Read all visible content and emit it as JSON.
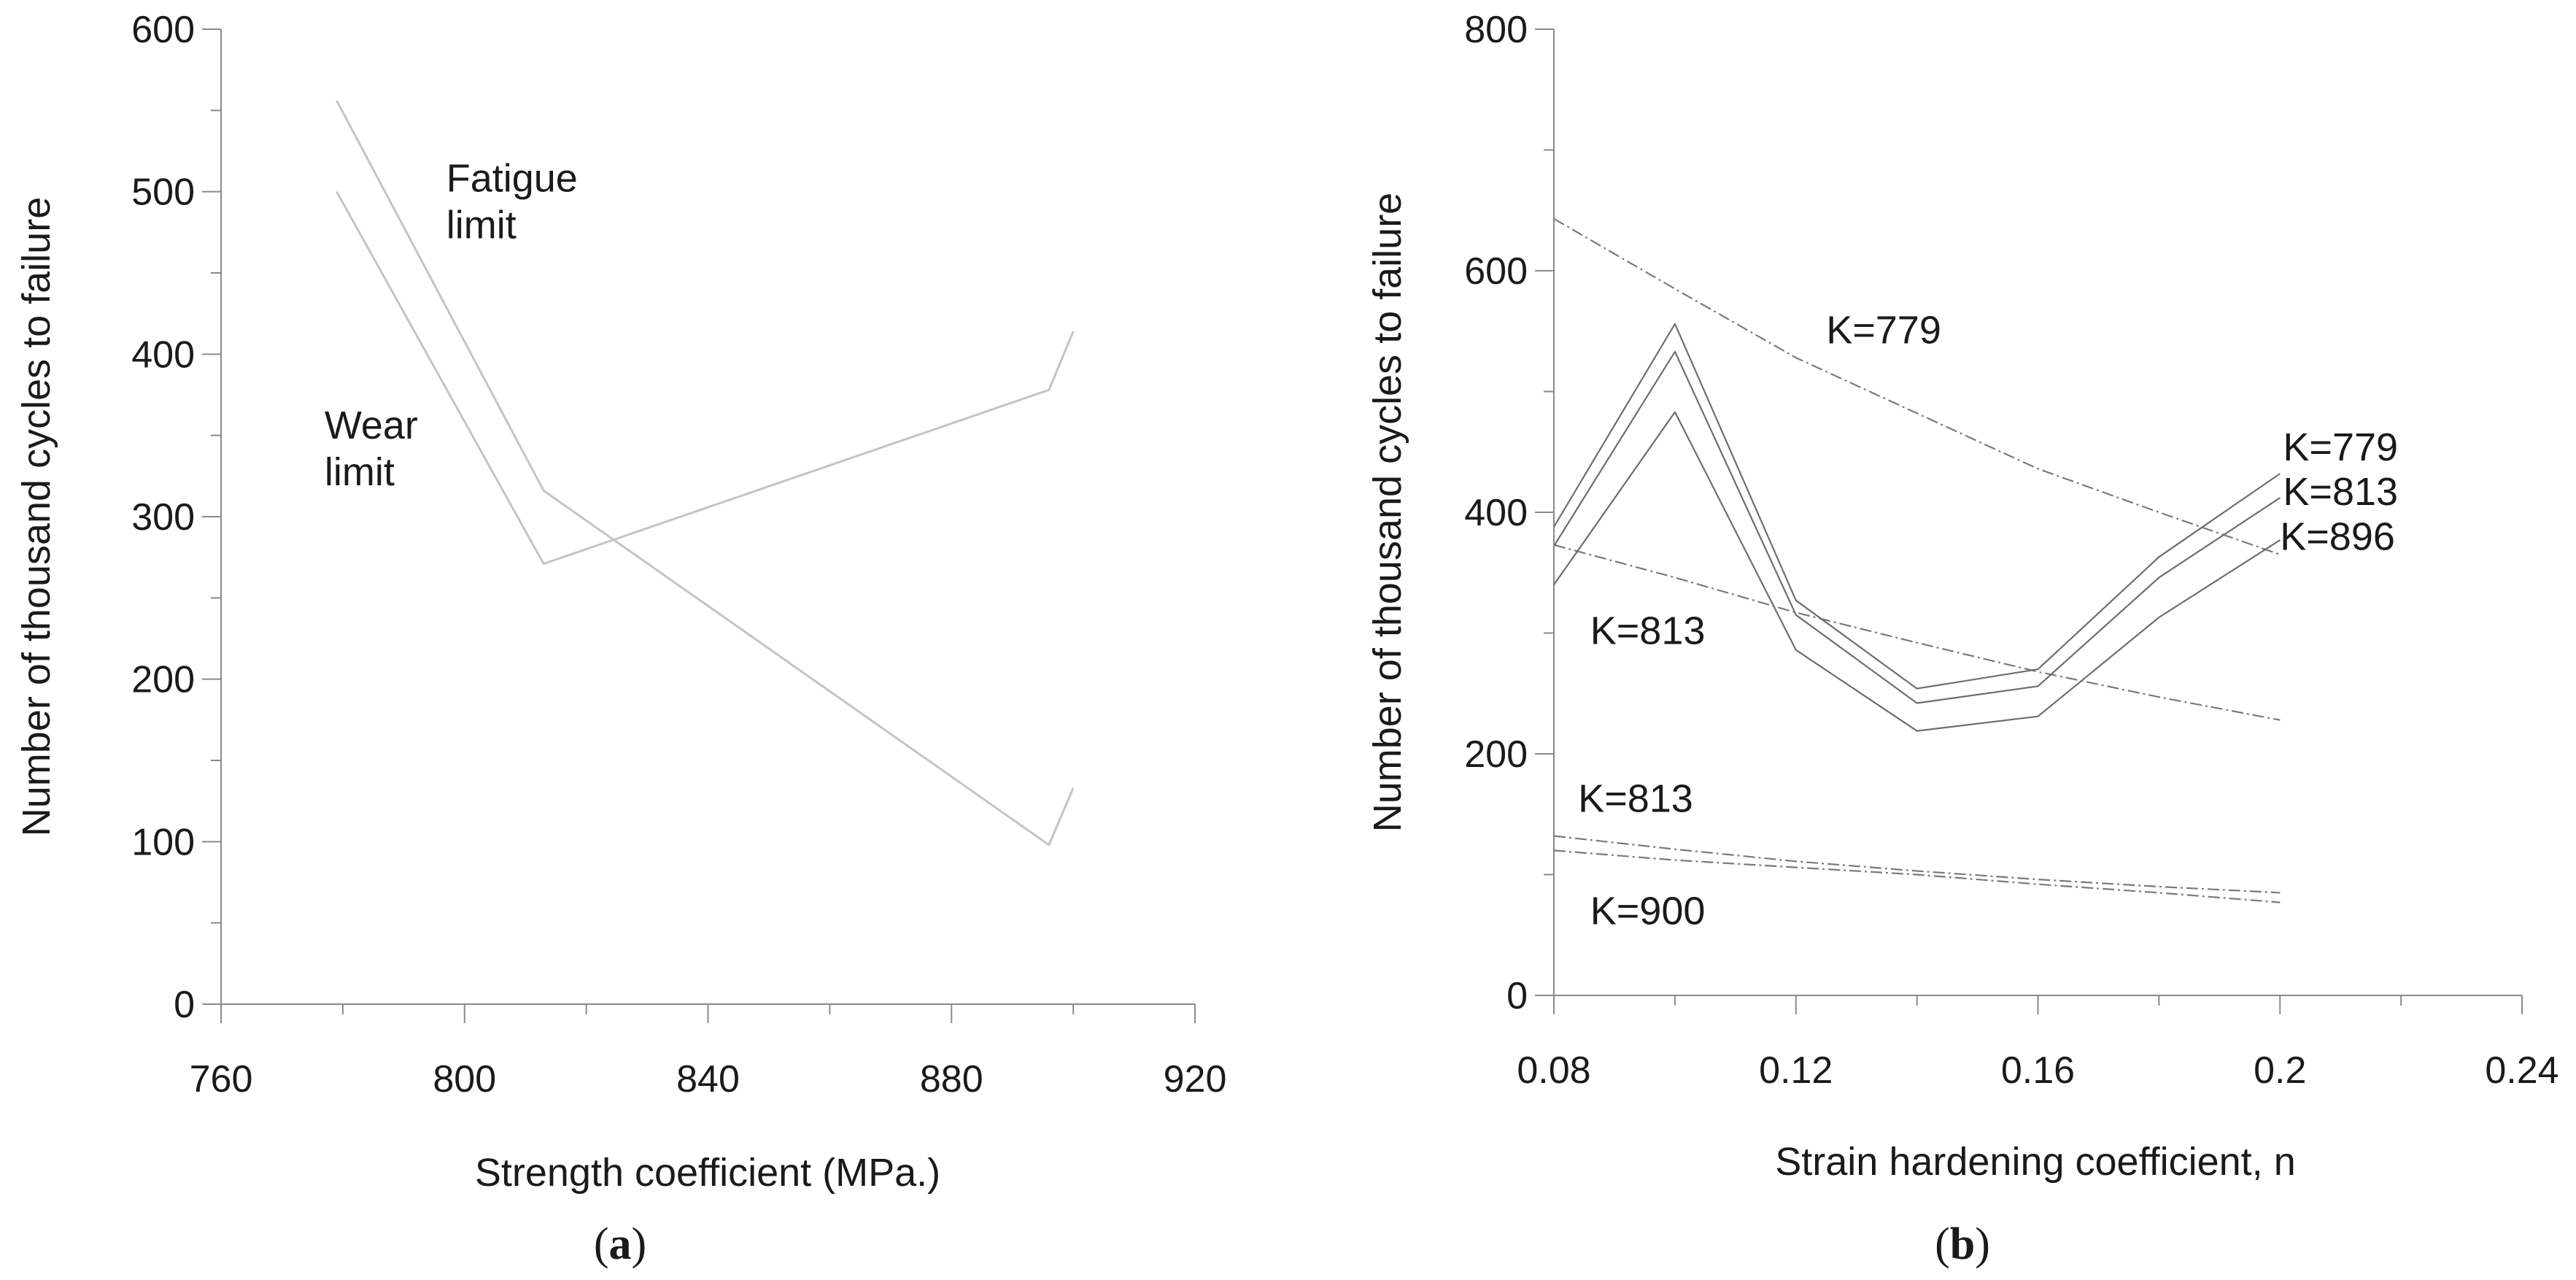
{
  "chart_data": [
    {
      "panel": "a",
      "panel_label_text": {
        "open": "(",
        "letter": "a",
        "close": ")"
      },
      "type": "line",
      "xlabel": "Strength coefficient (MPa.)",
      "ylabel": "Number of thousand cycles to failure",
      "xlim": [
        760,
        920
      ],
      "ylim": [
        0,
        600
      ],
      "x_ticks": [
        "760",
        "800",
        "840",
        "880",
        "920"
      ],
      "y_ticks": [
        "0",
        "100",
        "200",
        "300",
        "400",
        "500",
        "600"
      ],
      "series": [
        {
          "name": "Fatigue limit",
          "x": [
            779,
            813,
            896,
            900
          ],
          "y": [
            556,
            316,
            98,
            133
          ]
        },
        {
          "name": "Wear limit",
          "x": [
            779,
            813,
            896,
            900
          ],
          "y": [
            500,
            271,
            378,
            414
          ]
        }
      ],
      "annotations": [
        {
          "lines": [
            "Fatigue",
            "limit"
          ],
          "x": 797,
          "y": 500
        },
        {
          "lines": [
            "Wear",
            "limit"
          ],
          "x": 777,
          "y": 348
        }
      ]
    },
    {
      "panel": "b",
      "panel_label_text": {
        "open": "(",
        "letter": "b",
        "close": ")"
      },
      "type": "line",
      "xlabel": "Strain hardening coefficient, n",
      "ylabel": "Number of thousand cycles to failure",
      "xlim": [
        0.08,
        0.24
      ],
      "ylim": [
        0,
        800
      ],
      "x_ticks": [
        "0.08",
        "0.12",
        "0.16",
        "0.2",
        "0.24"
      ],
      "y_ticks": [
        "0",
        "200",
        "400",
        "600",
        "800"
      ],
      "series": [
        {
          "name": "Fatigue K=779",
          "style": "dashed",
          "x": [
            0.08,
            0.1,
            0.12,
            0.14,
            0.16,
            0.18,
            0.2
          ],
          "y": [
            643,
            585,
            528,
            482,
            436,
            400,
            365
          ]
        },
        {
          "name": "Fatigue K=813",
          "style": "dashed",
          "x": [
            0.08,
            0.1,
            0.12,
            0.14,
            0.16,
            0.18,
            0.2
          ],
          "y": [
            373,
            346,
            317,
            292,
            268,
            247,
            228
          ]
        },
        {
          "name": "Fatigue K=813 (low)",
          "style": "dashed",
          "x": [
            0.08,
            0.1,
            0.12,
            0.14,
            0.16,
            0.18,
            0.2
          ],
          "y": [
            132,
            121,
            111,
            103,
            96,
            90,
            85
          ]
        },
        {
          "name": "Fatigue K=900",
          "style": "dashed",
          "x": [
            0.08,
            0.1,
            0.12,
            0.14,
            0.16,
            0.18,
            0.2
          ],
          "y": [
            120,
            112,
            106,
            100,
            92,
            85,
            77
          ]
        },
        {
          "name": "Wear K=779",
          "style": "solid",
          "x": [
            0.08,
            0.1,
            0.12,
            0.14,
            0.16,
            0.18,
            0.2
          ],
          "y": [
            388,
            556,
            327,
            254,
            270,
            363,
            432
          ]
        },
        {
          "name": "Wear K=813",
          "style": "solid",
          "x": [
            0.08,
            0.1,
            0.12,
            0.14,
            0.16,
            0.18,
            0.2
          ],
          "y": [
            372,
            533,
            315,
            242,
            256,
            346,
            412
          ]
        },
        {
          "name": "Wear K=896",
          "style": "solid",
          "x": [
            0.08,
            0.1,
            0.12,
            0.14,
            0.16,
            0.18,
            0.2
          ],
          "y": [
            340,
            483,
            286,
            219,
            231,
            313,
            377
          ]
        }
      ],
      "annotations": [
        {
          "text": "K=779",
          "x": 0.125,
          "y": 540
        },
        {
          "text": "K=779",
          "x": 0.2005,
          "y": 443
        },
        {
          "text": "K=813",
          "x": 0.2005,
          "y": 406
        },
        {
          "text": "K=896",
          "x": 0.2,
          "y": 369
        },
        {
          "text": "K=813",
          "x": 0.086,
          "y": 291
        },
        {
          "text": "K=813",
          "x": 0.084,
          "y": 152
        },
        {
          "text": "K=900",
          "x": 0.086,
          "y": 59
        }
      ]
    }
  ]
}
